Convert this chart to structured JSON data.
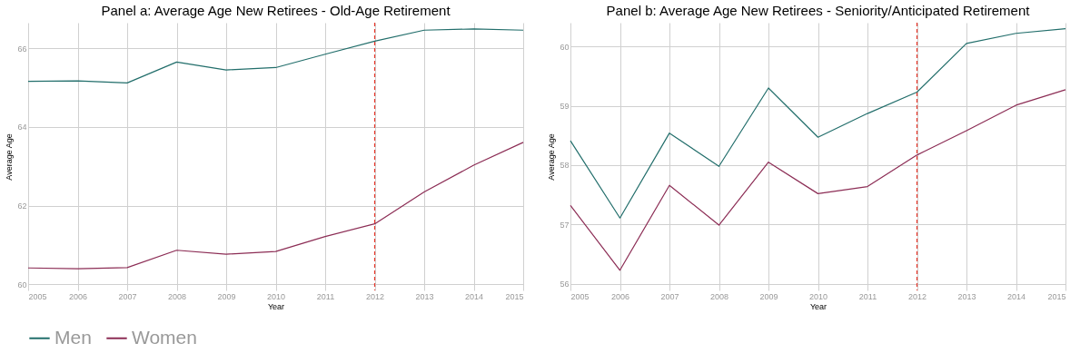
{
  "chart_data": [
    {
      "type": "line",
      "title": "Panel a: Average Age New Retirees - Old-Age Retirement",
      "xlabel": "Year",
      "ylabel": "Average Age",
      "x": [
        2005,
        2006,
        2007,
        2008,
        2009,
        2010,
        2011,
        2012,
        2013,
        2014,
        2015
      ],
      "series": [
        {
          "name": "Men",
          "color": "#226e6b",
          "values": [
            65.16,
            65.17,
            65.12,
            65.65,
            65.45,
            65.51,
            65.85,
            66.18,
            66.46,
            66.49,
            66.46
          ]
        },
        {
          "name": "Women",
          "color": "#8c2d55",
          "values": [
            60.42,
            60.4,
            60.43,
            60.87,
            60.77,
            60.84,
            61.22,
            61.54,
            62.35,
            63.03,
            63.61
          ]
        }
      ],
      "xlim": [
        2005,
        2015
      ],
      "xticks": [
        2005,
        2006,
        2007,
        2008,
        2009,
        2010,
        2011,
        2012,
        2013,
        2014,
        2015
      ],
      "ylim": [
        59.85,
        66.65
      ],
      "yticks": [
        60,
        62,
        64,
        66
      ],
      "ref_lines": [
        {
          "axis": "x",
          "value": 2012,
          "color": "#e8372a",
          "line_style": "dashed"
        }
      ],
      "grid": true,
      "legend": "bottom",
      "marker": "none",
      "line_style": "solid"
    },
    {
      "type": "line",
      "title": "Panel b: Average Age New Retirees - Seniority/Anticipated Retirement",
      "xlabel": "Year",
      "ylabel": "Average Age",
      "x": [
        2005,
        2006,
        2007,
        2008,
        2009,
        2010,
        2011,
        2012,
        2013,
        2014,
        2015
      ],
      "series": [
        {
          "name": "Men",
          "color": "#226e6b",
          "values": [
            58.41,
            57.11,
            58.54,
            57.98,
            59.3,
            58.47,
            58.87,
            59.23,
            60.05,
            60.22,
            60.3
          ]
        },
        {
          "name": "Women",
          "color": "#8c2d55",
          "values": [
            57.32,
            56.23,
            57.66,
            56.99,
            58.05,
            57.52,
            57.64,
            58.17,
            58.58,
            59.01,
            59.27
          ]
        }
      ],
      "xlim": [
        2005,
        2015
      ],
      "xticks": [
        2005,
        2006,
        2007,
        2008,
        2009,
        2010,
        2011,
        2012,
        2013,
        2014,
        2015
      ],
      "ylim": [
        55.89,
        60.4
      ],
      "yticks": [
        56,
        57,
        58,
        59,
        60
      ],
      "ref_lines": [
        {
          "axis": "x",
          "value": 2012,
          "color": "#e8372a",
          "line_style": "dashed"
        }
      ],
      "grid": true,
      "legend": "bottom",
      "marker": "none",
      "line_style": "solid"
    }
  ]
}
